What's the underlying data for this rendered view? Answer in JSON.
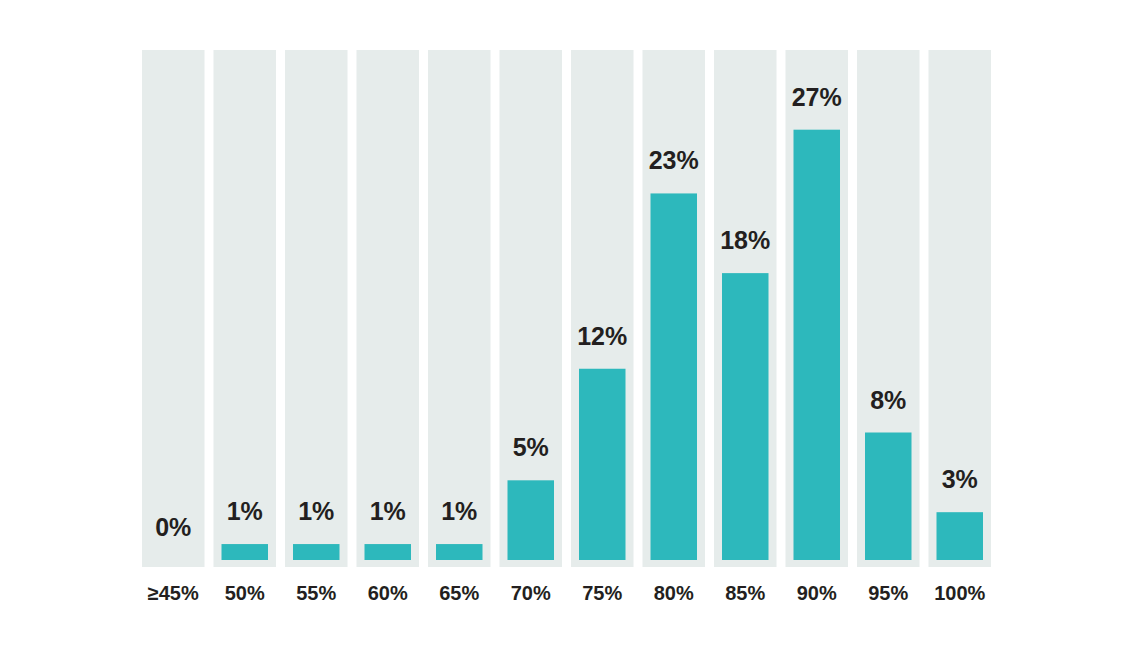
{
  "chart_data": {
    "type": "bar",
    "categories": [
      "≥45%",
      "50%",
      "55%",
      "60%",
      "65%",
      "70%",
      "75%",
      "80%",
      "85%",
      "90%",
      "95%",
      "100%"
    ],
    "values": [
      0,
      1,
      1,
      1,
      1,
      5,
      12,
      23,
      18,
      27,
      8,
      3
    ],
    "value_labels": [
      "0%",
      "1%",
      "1%",
      "1%",
      "1%",
      "5%",
      "12%",
      "23%",
      "18%",
      "27%",
      "8%",
      "3%"
    ],
    "color": "#2db8bc",
    "ylim": [
      0,
      32
    ],
    "data_labels": true,
    "tick_labels": "x"
  }
}
